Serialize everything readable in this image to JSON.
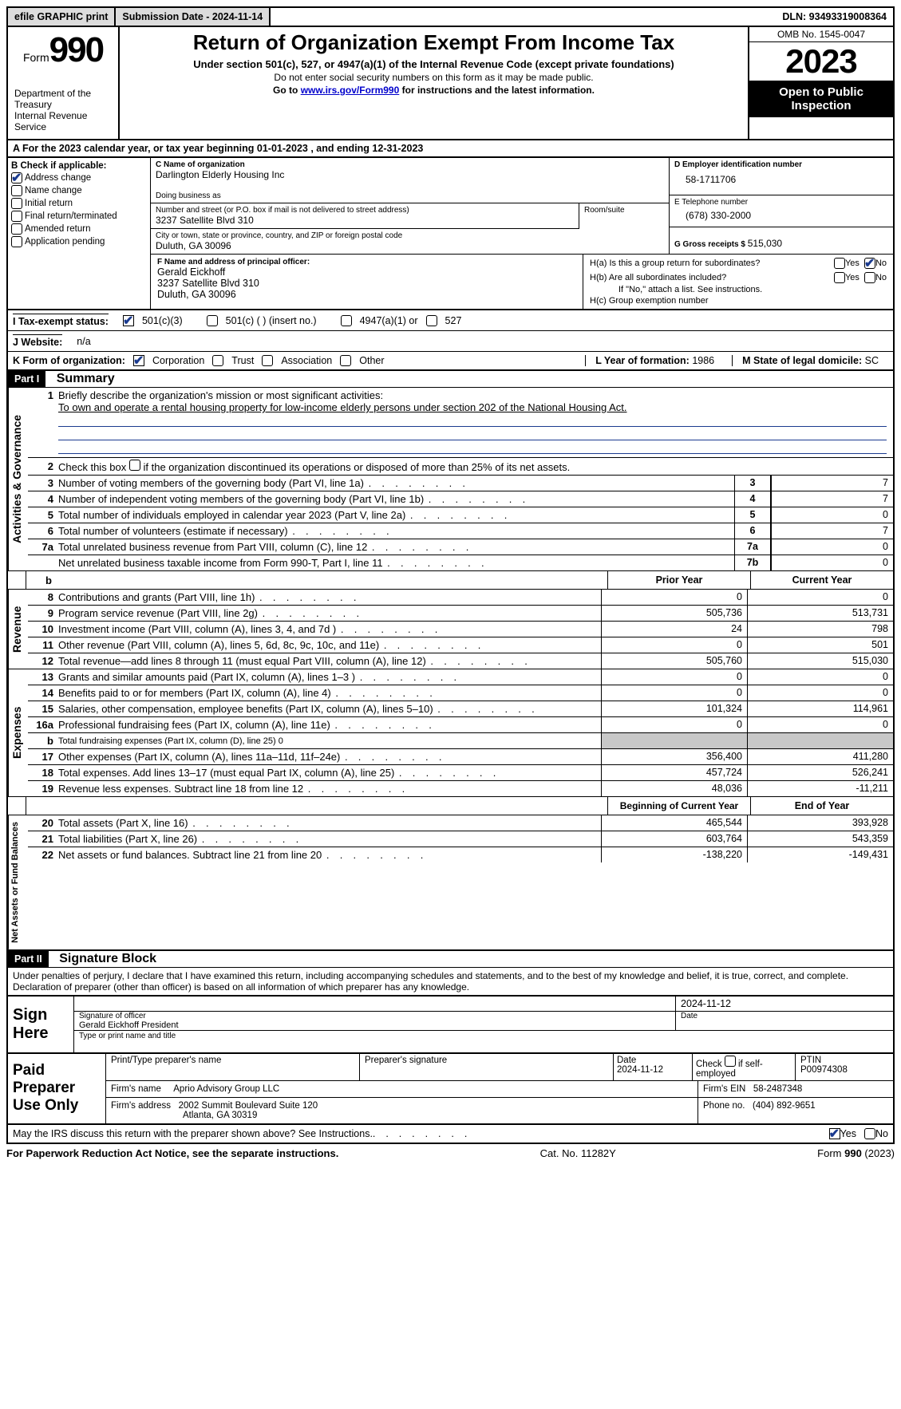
{
  "topbar": {
    "efile": "efile GRAPHIC print",
    "submission": "Submission Date - 2024-11-14",
    "dln": "DLN: 93493319008364"
  },
  "header": {
    "form_word": "Form",
    "form_num": "990",
    "title": "Return of Organization Exempt From Income Tax",
    "subtitle": "Under section 501(c), 527, or 4947(a)(1) of the Internal Revenue Code (except private foundations)",
    "note1": "Do not enter social security numbers on this form as it may be made public.",
    "note2_pre": "Go to ",
    "note2_link": "www.irs.gov/Form990",
    "note2_post": " for instructions and the latest information.",
    "omb": "OMB No. 1545-0047",
    "year": "2023",
    "inspect": "Open to Public Inspection",
    "dept": "Department of the Treasury\nInternal Revenue Service"
  },
  "section_a": {
    "text_pre": "A For the 2023 calendar year, or tax year beginning ",
    "begin": "01-01-2023",
    "mid": " , and ending ",
    "end": "12-31-2023"
  },
  "col_b": {
    "header": "B Check if applicable:",
    "items": [
      "Address change",
      "Name change",
      "Initial return",
      "Final return/terminated",
      "Amended return",
      "Application pending"
    ],
    "checked_idx": 0
  },
  "col_c": {
    "name_label": "C Name of organization",
    "name": "Darlington Elderly Housing Inc",
    "dba_label": "Doing business as",
    "street_label": "Number and street (or P.O. box if mail is not delivered to street address)",
    "room_label": "Room/suite",
    "street": "3237 Satellite Blvd 310",
    "city_label": "City or town, state or province, country, and ZIP or foreign postal code",
    "city": "Duluth, GA  30096",
    "officer_label": "F  Name and address of principal officer:",
    "officer_name": "Gerald Eickhoff",
    "officer_addr1": "3237 Satellite Blvd 310",
    "officer_addr2": "Duluth, GA  30096"
  },
  "col_d": {
    "ein_label": "D Employer identification number",
    "ein": "58-1711706",
    "phone_label": "E Telephone number",
    "phone": "(678) 330-2000",
    "gross_label": "G Gross receipts $ ",
    "gross": "515,030"
  },
  "col_h": {
    "ha": "H(a)  Is this a group return for subordinates?",
    "hb": "H(b)  Are all subordinates included?",
    "hb_note": "If \"No,\" attach a list. See instructions.",
    "hc": "H(c)  Group exemption number",
    "yes": "Yes",
    "no": "No"
  },
  "status": {
    "label": "I    Tax-exempt status:",
    "opt1": "501(c)(3)",
    "opt2": "501(c) (  ) (insert no.)",
    "opt3": "4947(a)(1) or",
    "opt4": "527"
  },
  "website": {
    "label": "J    Website:",
    "value": "n/a"
  },
  "korg": {
    "label": "K Form of organization:",
    "opts": [
      "Corporation",
      "Trust",
      "Association",
      "Other"
    ],
    "year_label": "L Year of formation: ",
    "year": "1986",
    "domicile_label": "M State of legal domicile: ",
    "domicile": "SC"
  },
  "part1": {
    "label": "Part I",
    "title": "Summary"
  },
  "summary": {
    "line1": "Briefly describe the organization's mission or most significant activities:",
    "mission": "To own and operate a rental housing property for low-income elderly persons under section 202 of the National Housing Act.",
    "line2": "Check this box        if the organization discontinued its operations or disposed of more than 25% of its net assets.",
    "rows_single": [
      {
        "n": "3",
        "t": "Number of voting members of the governing body (Part VI, line 1a)",
        "box": "3",
        "v": "7"
      },
      {
        "n": "4",
        "t": "Number of independent voting members of the governing body (Part VI, line 1b)",
        "box": "4",
        "v": "7"
      },
      {
        "n": "5",
        "t": "Total number of individuals employed in calendar year 2023 (Part V, line 2a)",
        "box": "5",
        "v": "0"
      },
      {
        "n": "6",
        "t": "Total number of volunteers (estimate if necessary)",
        "box": "6",
        "v": "7"
      },
      {
        "n": "7a",
        "t": "Total unrelated business revenue from Part VIII, column (C), line 12",
        "box": "7a",
        "v": "0"
      },
      {
        "n": "",
        "t": "Net unrelated business taxable income from Form 990-T, Part I, line 11",
        "box": "7b",
        "v": "0"
      }
    ],
    "hdr_b": "b",
    "hdr_prior": "Prior Year",
    "hdr_curr": "Current Year",
    "revenue": [
      {
        "n": "8",
        "t": "Contributions and grants (Part VIII, line 1h)",
        "p": "0",
        "c": "0"
      },
      {
        "n": "9",
        "t": "Program service revenue (Part VIII, line 2g)",
        "p": "505,736",
        "c": "513,731"
      },
      {
        "n": "10",
        "t": "Investment income (Part VIII, column (A), lines 3, 4, and 7d )",
        "p": "24",
        "c": "798"
      },
      {
        "n": "11",
        "t": "Other revenue (Part VIII, column (A), lines 5, 6d, 8c, 9c, 10c, and 11e)",
        "p": "0",
        "c": "501"
      },
      {
        "n": "12",
        "t": "Total revenue—add lines 8 through 11 (must equal Part VIII, column (A), line 12)",
        "p": "505,760",
        "c": "515,030"
      }
    ],
    "expenses": [
      {
        "n": "13",
        "t": "Grants and similar amounts paid (Part IX, column (A), lines 1–3 )",
        "p": "0",
        "c": "0"
      },
      {
        "n": "14",
        "t": "Benefits paid to or for members (Part IX, column (A), line 4)",
        "p": "0",
        "c": "0"
      },
      {
        "n": "15",
        "t": "Salaries, other compensation, employee benefits (Part IX, column (A), lines 5–10)",
        "p": "101,324",
        "c": "114,961"
      },
      {
        "n": "16a",
        "t": "Professional fundraising fees (Part IX, column (A), line 11e)",
        "p": "0",
        "c": "0"
      },
      {
        "n": "b",
        "t": "Total fundraising expenses (Part IX, column (D), line 25) 0",
        "p": "",
        "c": "",
        "shade": true,
        "small": true
      },
      {
        "n": "17",
        "t": "Other expenses (Part IX, column (A), lines 11a–11d, 11f–24e)",
        "p": "356,400",
        "c": "411,280"
      },
      {
        "n": "18",
        "t": "Total expenses. Add lines 13–17 (must equal Part IX, column (A), line 25)",
        "p": "457,724",
        "c": "526,241"
      },
      {
        "n": "19",
        "t": "Revenue less expenses. Subtract line 18 from line 12",
        "p": "48,036",
        "c": "-11,211"
      }
    ],
    "hdr_begin": "Beginning of Current Year",
    "hdr_end": "End of Year",
    "net": [
      {
        "n": "20",
        "t": "Total assets (Part X, line 16)",
        "p": "465,544",
        "c": "393,928"
      },
      {
        "n": "21",
        "t": "Total liabilities (Part X, line 26)",
        "p": "603,764",
        "c": "543,359"
      },
      {
        "n": "22",
        "t": "Net assets or fund balances. Subtract line 21 from line 20",
        "p": "-138,220",
        "c": "-149,431"
      }
    ]
  },
  "part2": {
    "label": "Part II",
    "title": "Signature Block"
  },
  "perjury": "Under penalties of perjury, I declare that I have examined this return, including accompanying schedules and statements, and to the best of my knowledge and belief, it is true, correct, and complete. Declaration of preparer (other than officer) is based on all information of which preparer has any knowledge.",
  "sign": {
    "label": "Sign Here",
    "date": "2024-11-12",
    "sig_label": "Signature of officer",
    "name": "Gerald Eickhoff President",
    "type_label": "Type or print name and title",
    "date_label": "Date"
  },
  "preparer": {
    "label": "Paid Preparer Use Only",
    "print_label": "Print/Type preparer's name",
    "sig_label": "Preparer's signature",
    "date_label": "Date",
    "date": "2024-11-12",
    "self_label": "Check         if self-employed",
    "ptin_label": "PTIN",
    "ptin": "P00974308",
    "firm_name_label": "Firm's name",
    "firm_name": "Aprio Advisory Group LLC",
    "firm_ein_label": "Firm's EIN",
    "firm_ein": "58-2487348",
    "firm_addr_label": "Firm's address",
    "firm_addr1": "2002 Summit Boulevard Suite 120",
    "firm_addr2": "Atlanta, GA  30319",
    "phone_label": "Phone no.",
    "phone": "(404) 892-9651"
  },
  "discuss": {
    "text": "May the IRS discuss this return with the preparer shown above? See Instructions.",
    "yes": "Yes",
    "no": "No"
  },
  "footer": {
    "left": "For Paperwork Reduction Act Notice, see the separate instructions.",
    "mid": "Cat. No. 11282Y",
    "right_pre": "Form ",
    "right_form": "990",
    "right_post": " (2023)"
  },
  "vert": {
    "gov": "Activities & Governance",
    "rev": "Revenue",
    "exp": "Expenses",
    "net": "Net Assets or Fund Balances"
  }
}
